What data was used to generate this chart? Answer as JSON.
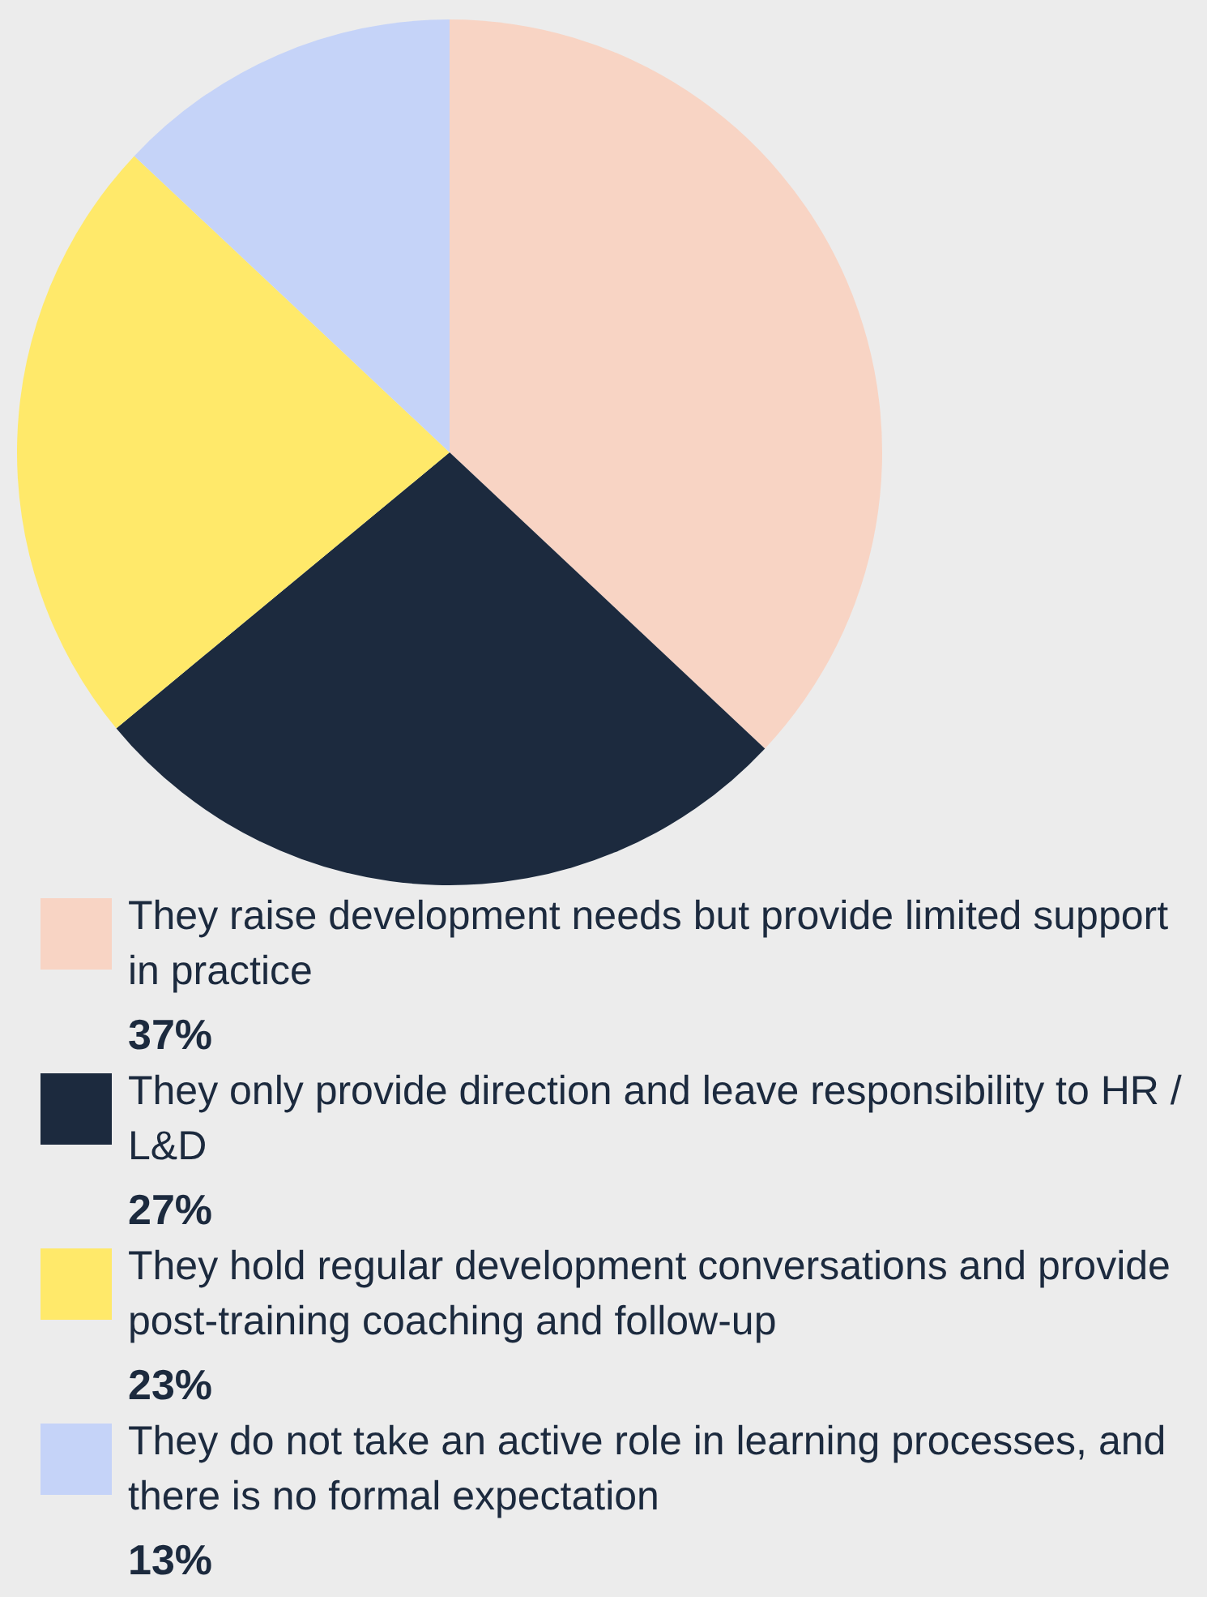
{
  "chart_data": {
    "type": "pie",
    "categories": [
      "They raise development needs but provide limited support in practice",
      "They only provide direction and leave responsibility to HR / L&D",
      "They hold regular development conversations and provide post-training coaching and follow-up",
      "They do not take an active role in learning processes, and there is no formal expectation"
    ],
    "values": [
      37,
      27,
      23,
      13
    ],
    "colors": [
      "#f8d4c4",
      "#1c2a3e",
      "#ffe96a",
      "#c5d3f8"
    ],
    "value_labels": [
      "37%",
      "27%",
      "23%",
      "13%"
    ],
    "legend": "bottom"
  }
}
